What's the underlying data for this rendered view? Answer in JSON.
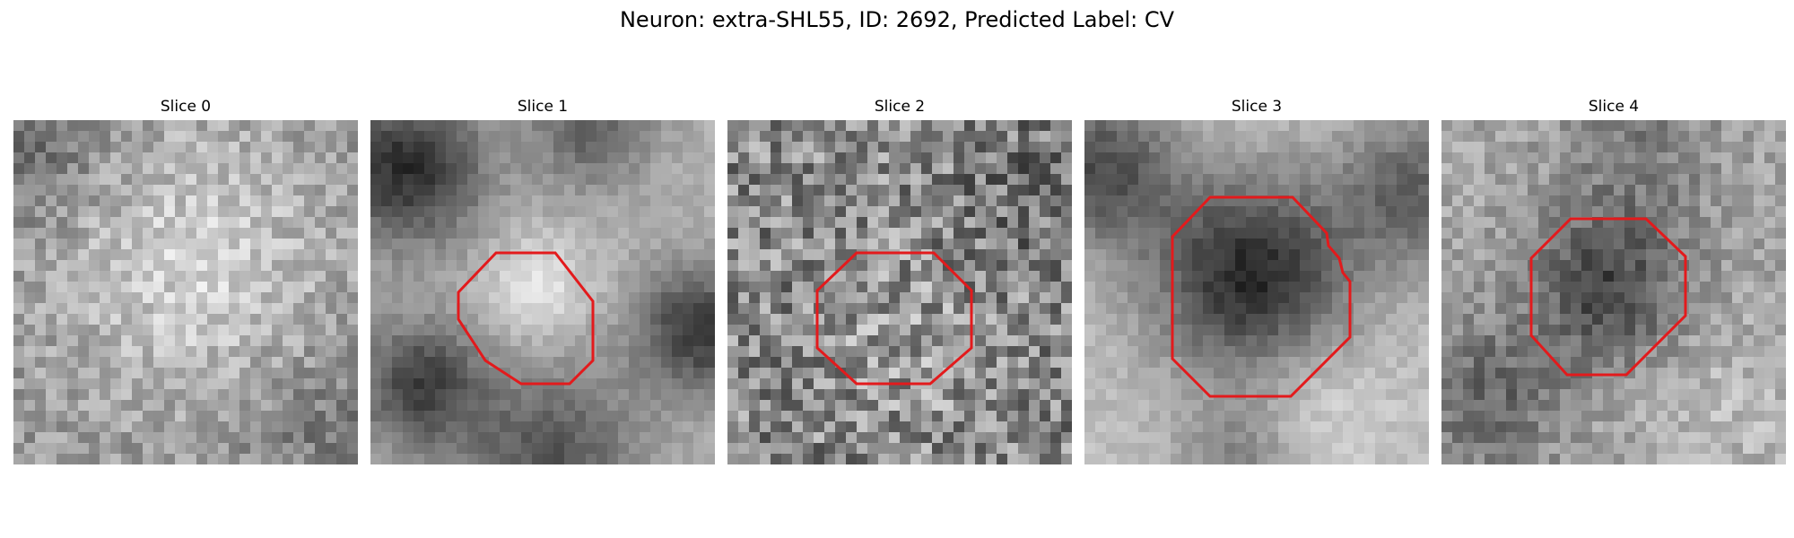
{
  "figure": {
    "title": "Neuron: extra-SHL55, ID: 2692, Predicted Label: CV"
  },
  "slices": [
    {
      "label": "Slice 0",
      "contour": false,
      "pattern": "diffuse"
    },
    {
      "label": "Slice 1",
      "contour": true,
      "pattern": "bright-center"
    },
    {
      "label": "Slice 2",
      "contour": true,
      "pattern": "noisy"
    },
    {
      "label": "Slice 3",
      "contour": true,
      "pattern": "dark-blob"
    },
    {
      "label": "Slice 4",
      "contour": true,
      "pattern": "dark-center"
    }
  ],
  "colors": {
    "contour": "#e31a1c",
    "background": "#ffffff"
  }
}
